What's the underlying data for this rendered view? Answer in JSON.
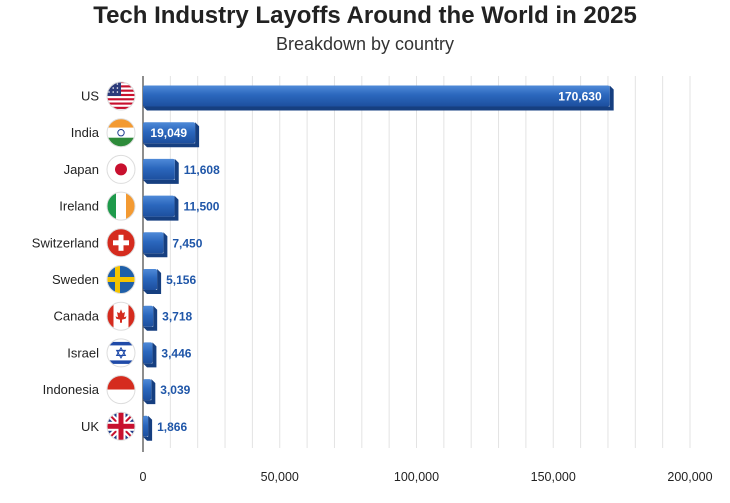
{
  "chart_data": {
    "type": "bar",
    "orientation": "horizontal",
    "title": "Tech Industry Layoffs Around the World in 2025",
    "subtitle": "Breakdown by country",
    "categories": [
      "US",
      "India",
      "Japan",
      "Ireland",
      "Switzerland",
      "Sweden",
      "Canada",
      "Israel",
      "Indonesia",
      "UK"
    ],
    "values": [
      170630,
      19049,
      11608,
      11500,
      7450,
      5156,
      3718,
      3446,
      3039,
      1866
    ],
    "value_labels": [
      "170,630",
      "19,049",
      "11,608",
      "11,500",
      "7,450",
      "5,156",
      "3,718",
      "3,446",
      "3,039",
      "1,866"
    ],
    "flags": [
      "us-flag-icon",
      "india-flag-icon",
      "japan-flag-icon",
      "ireland-flag-icon",
      "switzerland-flag-icon",
      "sweden-flag-icon",
      "canada-flag-icon",
      "israel-flag-icon",
      "indonesia-flag-icon",
      "uk-flag-icon"
    ],
    "xlim": [
      0,
      200000
    ],
    "xticks": [
      0,
      50000,
      100000,
      150000,
      200000
    ],
    "xtick_labels": [
      "0",
      "50,000",
      "100,000",
      "150,000",
      "200,000"
    ],
    "xlabel": "",
    "ylabel": "",
    "grid": true,
    "bar_color": "#2b67bd",
    "bar_dark_color": "#163f80",
    "label_color": "#1f56a8"
  }
}
